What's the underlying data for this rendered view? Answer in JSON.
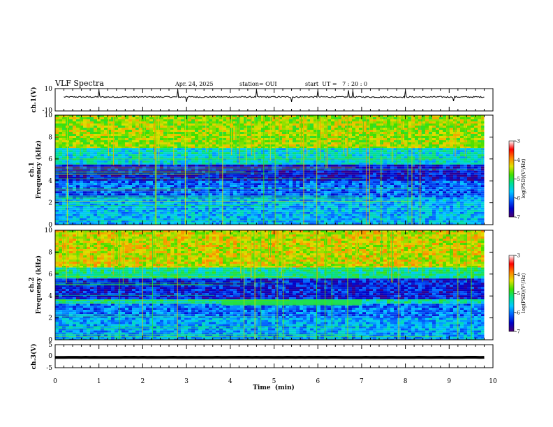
{
  "header": {
    "title": "VLF Spectra",
    "date": "Apr. 24, 2025",
    "station": "station= OUI",
    "start_ut": "start  UT =   7 : 20 : 0"
  },
  "colors": {
    "background": "#ffffff",
    "axis": "#000000",
    "colormap": [
      "#4a0070",
      "#0000c8",
      "#0060ff",
      "#00c8ff",
      "#00e090",
      "#40e000",
      "#e0e000",
      "#ff8000",
      "#ff0000",
      "#ffffff"
    ]
  },
  "chart_data": [
    {
      "type": "line",
      "panel": "ch1-waveform",
      "ylabel": "ch.1(V)",
      "ylim": [
        -10,
        10
      ],
      "y_ticks": [
        "10",
        "-10"
      ],
      "xlim": [
        0,
        10
      ],
      "description_values": {
        "baseline": 2.5,
        "noise_amplitude": 0.6
      },
      "spike_times_min": [
        1.0,
        2.8,
        3.0,
        4.6,
        5.4,
        6.0,
        6.7,
        6.8,
        8.0,
        9.1
      ]
    },
    {
      "type": "heatmap",
      "panel": "ch1-spectrogram",
      "ylabel": "ch.1 Frequency (kHz)",
      "ylim": [
        0,
        10
      ],
      "y_ticks": [
        "0",
        "2",
        "4",
        "6",
        "8",
        "10"
      ],
      "xlim": [
        0,
        9.8
      ],
      "bands": [
        {
          "from_khz": 0,
          "to_khz": 2.5,
          "level": 0.32
        },
        {
          "from_khz": 2.5,
          "to_khz": 4.0,
          "level": 0.22
        },
        {
          "from_khz": 4.0,
          "to_khz": 5.5,
          "level": 0.12
        },
        {
          "from_khz": 5.5,
          "to_khz": 7.0,
          "level": 0.38
        },
        {
          "from_khz": 7.0,
          "to_khz": 10.0,
          "level": 0.62
        }
      ],
      "colorbar": {
        "label": "log(PSD)(V²/Hz)",
        "range": [
          -7,
          -3
        ],
        "ticks": [
          "-3",
          "-4",
          "-5",
          "-6",
          "-7"
        ]
      }
    },
    {
      "type": "heatmap",
      "panel": "ch2-spectrogram",
      "ylabel": "ch.2 Frequency (kHz)",
      "ylim": [
        0,
        10
      ],
      "y_ticks": [
        "0",
        "2",
        "4",
        "6",
        "8",
        "10"
      ],
      "xlim": [
        0,
        9.8
      ],
      "bands": [
        {
          "from_khz": 0,
          "to_khz": 2.0,
          "level": 0.3
        },
        {
          "from_khz": 2.0,
          "to_khz": 3.3,
          "level": 0.24
        },
        {
          "from_khz": 3.3,
          "to_khz": 3.7,
          "level": 0.42
        },
        {
          "from_khz": 3.7,
          "to_khz": 5.6,
          "level": 0.14
        },
        {
          "from_khz": 5.6,
          "to_khz": 6.6,
          "level": 0.44
        },
        {
          "from_khz": 6.6,
          "to_khz": 10.0,
          "level": 0.66
        }
      ],
      "features": [
        {
          "name": "",
          "t_from_min": 3.8,
          "t_to_min": 7.0,
          "f_khz": 3.4,
          "level": 0.5
        }
      ],
      "colorbar": {
        "label": "log(PSD)(V²/Hz)",
        "range": [
          -7,
          -3
        ],
        "ticks": [
          "-3",
          "-4",
          "-5",
          "-6",
          "-7"
        ]
      }
    },
    {
      "type": "line",
      "panel": "ch3-waveform",
      "ylabel": "ch.3(V)",
      "ylim": [
        -5,
        5
      ],
      "y_ticks": [
        "5",
        "0",
        "-5"
      ],
      "xlim": [
        0,
        10
      ],
      "description_values": {
        "baseline": -0.5,
        "noise_amplitude": 0.1
      }
    }
  ],
  "x_axis": {
    "label": "Time  (min)",
    "ticks": [
      "0",
      "1",
      "2",
      "3",
      "4",
      "5",
      "6",
      "7",
      "8",
      "9",
      "10"
    ],
    "range": [
      0,
      10
    ]
  }
}
